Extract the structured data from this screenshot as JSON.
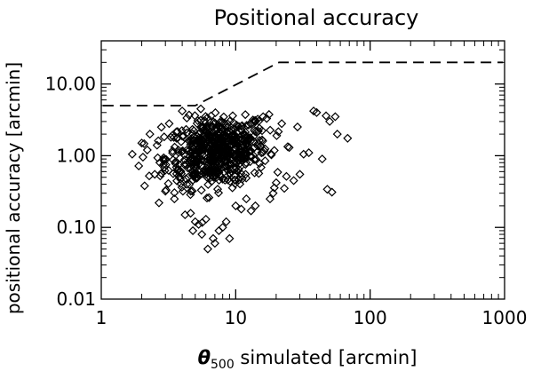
{
  "chart_data": {
    "type": "scatter",
    "title": "Positional accuracy",
    "xlabel_symbol": "θ",
    "xlabel_subscript": "500",
    "xlabel_rest": " simulated [arcmin]",
    "ylabel": "positional accuracy [arcmin]",
    "x_scale": "log",
    "y_scale": "log",
    "xlim": [
      1,
      1000
    ],
    "ylim": [
      0.01,
      40
    ],
    "x_ticks": [
      {
        "value": 1,
        "label": "1"
      },
      {
        "value": 10,
        "label": "10"
      },
      {
        "value": 100,
        "label": "100"
      },
      {
        "value": 1000,
        "label": "1000"
      }
    ],
    "y_ticks": [
      {
        "value": 0.01,
        "label": "0.01"
      },
      {
        "value": 0.1,
        "label": "0.10"
      },
      {
        "value": 1,
        "label": "1.00"
      },
      {
        "value": 10,
        "label": "10.00"
      }
    ],
    "grid": false,
    "marker": "diamond",
    "color": "#000000",
    "threshold_line": {
      "style": "dashed",
      "x": [
        1,
        5,
        21,
        1000
      ],
      "y": [
        5,
        5,
        20,
        20
      ]
    },
    "cluster": {
      "approx_count": 650,
      "x_log10_mean": 0.86,
      "x_log10_sd": 0.19,
      "y_log10_mean": 0.06,
      "y_log10_sd": 0.24
    },
    "points": [
      {
        "x": 1.7,
        "y": 1.05
      },
      {
        "x": 1.9,
        "y": 0.72
      },
      {
        "x": 2.0,
        "y": 1.5
      },
      {
        "x": 2.1,
        "y": 0.38
      },
      {
        "x": 2.2,
        "y": 1.2
      },
      {
        "x": 2.3,
        "y": 2.0
      },
      {
        "x": 2.5,
        "y": 0.55
      },
      {
        "x": 2.6,
        "y": 1.4
      },
      {
        "x": 2.8,
        "y": 2.5
      },
      {
        "x": 3.0,
        "y": 0.32
      },
      {
        "x": 3.2,
        "y": 2.8
      },
      {
        "x": 3.5,
        "y": 0.25
      },
      {
        "x": 4.0,
        "y": 4.2
      },
      {
        "x": 4.2,
        "y": 0.15
      },
      {
        "x": 4.5,
        "y": 3.7
      },
      {
        "x": 4.8,
        "y": 0.09
      },
      {
        "x": 5.0,
        "y": 0.12
      },
      {
        "x": 5.3,
        "y": 0.11
      },
      {
        "x": 5.5,
        "y": 4.5
      },
      {
        "x": 5.6,
        "y": 0.08
      },
      {
        "x": 6.0,
        "y": 0.13
      },
      {
        "x": 6.2,
        "y": 0.05
      },
      {
        "x": 6.8,
        "y": 0.07
      },
      {
        "x": 7.0,
        "y": 0.06
      },
      {
        "x": 7.5,
        "y": 0.09
      },
      {
        "x": 8.0,
        "y": 0.1
      },
      {
        "x": 8.5,
        "y": 0.12
      },
      {
        "x": 9.0,
        "y": 0.07
      },
      {
        "x": 10.0,
        "y": 0.2
      },
      {
        "x": 11.0,
        "y": 0.18
      },
      {
        "x": 12.0,
        "y": 0.25
      },
      {
        "x": 13.0,
        "y": 0.17
      },
      {
        "x": 14.0,
        "y": 0.2
      },
      {
        "x": 16.0,
        "y": 3.5
      },
      {
        "x": 17.0,
        "y": 3.3
      },
      {
        "x": 18.0,
        "y": 0.25
      },
      {
        "x": 19.0,
        "y": 0.3
      },
      {
        "x": 20.0,
        "y": 0.42
      },
      {
        "x": 22.0,
        "y": 2.8
      },
      {
        "x": 23.0,
        "y": 0.35
      },
      {
        "x": 25.0,
        "y": 1.3
      },
      {
        "x": 27.0,
        "y": 0.45
      },
      {
        "x": 30.0,
        "y": 0.55
      },
      {
        "x": 32.0,
        "y": 1.05
      },
      {
        "x": 35.0,
        "y": 1.1
      },
      {
        "x": 38.0,
        "y": 4.2
      },
      {
        "x": 40.0,
        "y": 4.0
      },
      {
        "x": 44.0,
        "y": 0.9
      },
      {
        "x": 47.0,
        "y": 3.6
      },
      {
        "x": 48.0,
        "y": 0.34
      },
      {
        "x": 50.0,
        "y": 3.0
      },
      {
        "x": 52.0,
        "y": 0.31
      },
      {
        "x": 55.0,
        "y": 3.5
      },
      {
        "x": 57.0,
        "y": 2.0
      },
      {
        "x": 68.0,
        "y": 1.75
      }
    ]
  }
}
